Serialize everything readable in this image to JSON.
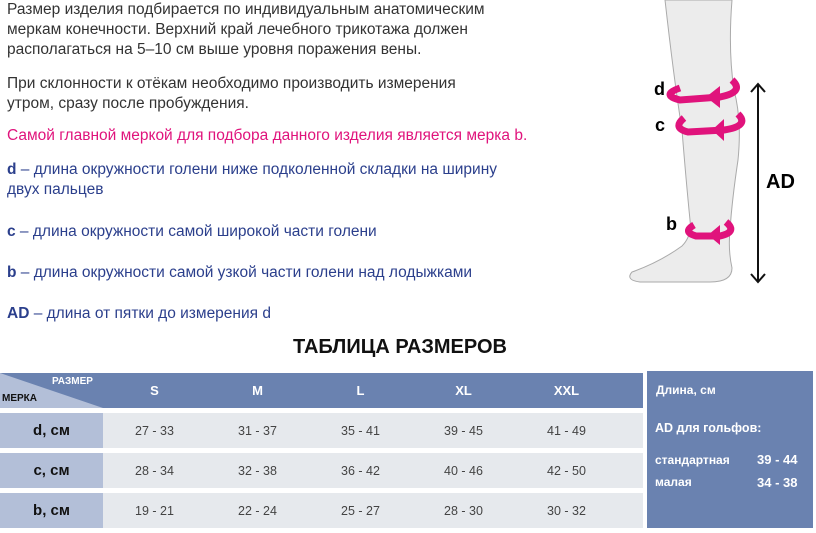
{
  "intro": {
    "p1": [
      "Размер изделия подбирается по индивидуальным анатомическим",
      "меркам конечности. Верхний край лечебного трикотажа должен",
      "располагаться на 5–10 см выше уровня поражения вены."
    ],
    "p2": [
      "При склонности к отёкам необходимо производить измерения",
      "утром, сразу после пробуждения."
    ],
    "highlight": "Самой главной меркой для подбора данного изделия является мерка b.",
    "defs": [
      {
        "key": "d",
        "text": " – длина окружности голени ниже подколенной складки на ширину",
        "text2": "двух пальцев"
      },
      {
        "key": "c",
        "text": " – длина окружности самой широкой части голени"
      },
      {
        "key": "b",
        "text": " – длина окружности самой узкой части голени над лодыжками"
      },
      {
        "key": "AD",
        "text": " – длина от пятки до измерения d"
      }
    ]
  },
  "diagram": {
    "labels": [
      "d",
      "c",
      "b",
      "AD"
    ],
    "accent": "#e0137c"
  },
  "table": {
    "title": "ТАБЛИЦА РАЗМЕРОВ",
    "corner_size": "РАЗМЕР",
    "corner_measure": "МЕРКА",
    "sizes": [
      "S",
      "M",
      "L",
      "XL",
      "XXL"
    ],
    "rows": [
      {
        "label": "d, см",
        "values": [
          "27 - 33",
          "31 - 37",
          "35 - 41",
          "39 - 45",
          "41 - 49"
        ]
      },
      {
        "label": "c, см",
        "values": [
          "28 - 34",
          "32 - 38",
          "36 - 42",
          "40 - 46",
          "42 - 50"
        ]
      },
      {
        "label": "b, см",
        "values": [
          "19 - 21",
          "22 - 24",
          "25 - 27",
          "28 - 30",
          "30 - 32"
        ]
      }
    ]
  },
  "length_panel": {
    "title": "Длина, см",
    "subtitle": "AD для гольфов:",
    "items": [
      {
        "label": "стандартная",
        "value": "39 - 44"
      },
      {
        "label": "малая",
        "value": "34 - 38"
      }
    ]
  },
  "colors": {
    "header": "#6a82b0",
    "label_col": "#b3bfd8",
    "cell": "#e6e9ed",
    "pink": "#e0137c",
    "blue": "#2b3f8c"
  }
}
